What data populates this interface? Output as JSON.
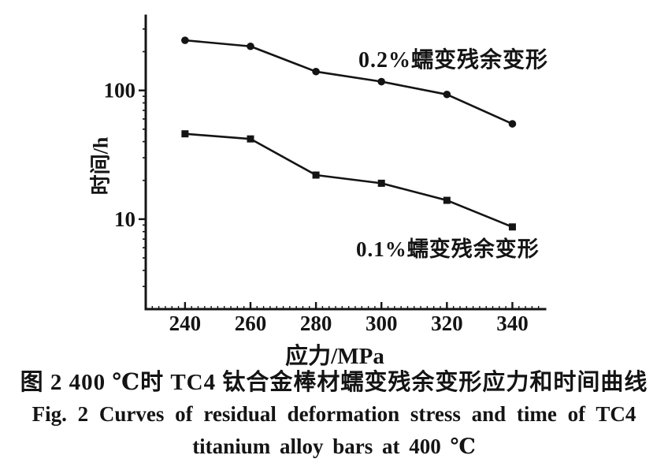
{
  "chart_data": {
    "type": "line",
    "xlabel": "应力/MPa",
    "ylabel": "时间/h",
    "x_scale": "linear",
    "y_scale": "log",
    "xlim": [
      228,
      350
    ],
    "ylim": [
      2,
      380
    ],
    "x_ticks": [
      240,
      260,
      280,
      300,
      320,
      340
    ],
    "y_ticks": [
      10,
      100
    ],
    "grid": false,
    "legend": "inline-annotations-on-plot",
    "ink_color": "#141414",
    "background_color": "#ffffff",
    "x": [
      240,
      260,
      280,
      300,
      320,
      340
    ],
    "series": [
      {
        "name": "0.2%蠕变残余变形",
        "marker": "circle",
        "values": [
          245,
          220,
          140,
          117,
          93,
          55
        ]
      },
      {
        "name": "0.1%蠕变残余变形",
        "marker": "square",
        "values": [
          46,
          42,
          22,
          19,
          14,
          8.7
        ]
      }
    ]
  },
  "caption": {
    "line1_cn": "图 2  400 ℃时 TC4 钛合金棒材蠕变残余变形应力和时间曲线",
    "line2_en": "Fig. 2  Curves of residual deformation stress and time of TC4",
    "line3_en": "titanium alloy bars at 400 ℃"
  }
}
